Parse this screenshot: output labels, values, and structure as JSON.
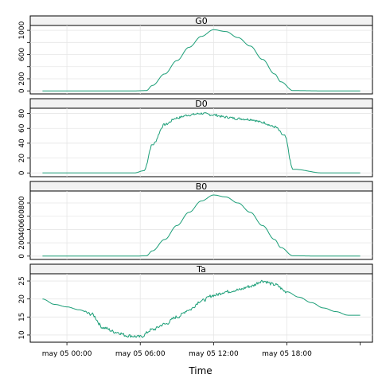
{
  "chart_data": {
    "type": "line",
    "xlabel": "Time",
    "x_unit": "hours",
    "xlim": [
      -3.0,
      25.0
    ],
    "x_ticks": [
      {
        "value": 0,
        "label": "may 05 00:00"
      },
      {
        "value": 6,
        "label": "may 05 06:00"
      },
      {
        "value": 12,
        "label": "may 05 12:00"
      },
      {
        "value": 18,
        "label": "may 05 18:00"
      }
    ],
    "x_minor_ticks": [
      24
    ],
    "grid": true,
    "line_color": "#1b9e77",
    "panels": [
      {
        "title": "G0",
        "ylim": [
          -50,
          1080
        ],
        "y_ticks": [
          0,
          200,
          400,
          600,
          800,
          1000
        ],
        "y_tick_labels": [
          "0",
          "200",
          "",
          "600",
          "",
          "1000"
        ],
        "x": [
          -2,
          0,
          3,
          5.5,
          6.5,
          7,
          8,
          9,
          10,
          11,
          12,
          13,
          14,
          15,
          16,
          17,
          17.5,
          18.5,
          21,
          24
        ],
        "values": [
          0,
          0,
          0,
          0,
          5,
          90,
          280,
          500,
          720,
          900,
          1010,
          980,
          880,
          740,
          520,
          280,
          150,
          5,
          0,
          0
        ]
      },
      {
        "title": "D0",
        "ylim": [
          -5,
          87
        ],
        "y_ticks": [
          0,
          20,
          40,
          60,
          80
        ],
        "y_tick_labels": [
          "0",
          "20",
          "40",
          "60",
          "80"
        ],
        "x": [
          -2,
          0,
          3,
          5.5,
          6.3,
          7,
          8,
          9,
          10,
          11,
          12,
          13,
          14,
          15,
          16,
          17,
          17.8,
          18.5,
          21,
          24
        ],
        "values": [
          0,
          0,
          0,
          0,
          3,
          38,
          65,
          74,
          78,
          80,
          78,
          75,
          73,
          72,
          68,
          62,
          50,
          5,
          0,
          0
        ]
      },
      {
        "title": "B0",
        "ylim": [
          -50,
          980
        ],
        "y_ticks": [
          0,
          200,
          400,
          600,
          800
        ],
        "y_tick_labels": [
          "0",
          "200",
          "400",
          "600",
          "800"
        ],
        "x": [
          -2,
          0,
          3,
          5.5,
          6.5,
          7,
          8,
          9,
          10,
          11,
          12,
          13,
          14,
          15,
          16,
          17,
          17.5,
          18.5,
          21,
          24
        ],
        "values": [
          0,
          0,
          0,
          0,
          5,
          80,
          250,
          460,
          660,
          830,
          920,
          890,
          800,
          660,
          460,
          250,
          130,
          5,
          0,
          0
        ]
      },
      {
        "title": "Ta",
        "ylim": [
          8,
          27
        ],
        "y_ticks": [
          10,
          15,
          20,
          25
        ],
        "y_tick_labels": [
          "10",
          "15",
          "20",
          "25"
        ],
        "x": [
          -2,
          -1,
          0,
          1,
          2,
          3,
          4,
          5,
          6,
          7,
          8,
          9,
          10,
          11,
          12,
          13,
          14,
          15,
          16,
          17,
          18,
          19,
          20,
          21,
          22,
          23,
          24
        ],
        "values": [
          20,
          18.5,
          17.8,
          17,
          15.8,
          12,
          10.8,
          9.8,
          9.5,
          11.5,
          13,
          15,
          17,
          19.5,
          21,
          22,
          22.5,
          23.5,
          25,
          24,
          22,
          20.5,
          19,
          17.5,
          16.5,
          15.5,
          15.5
        ]
      }
    ]
  }
}
